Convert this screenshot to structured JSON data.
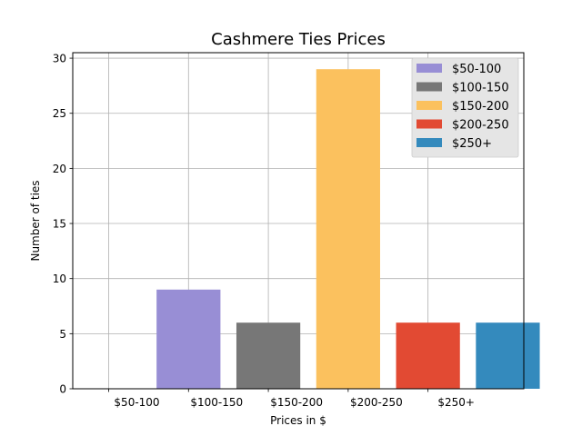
{
  "chart_data": {
    "type": "bar",
    "title": "Cashmere Ties Prices",
    "xlabel": "Prices in $",
    "ylabel": "Number of ties",
    "categories": [
      "$50-100",
      "$100-150",
      "$150-200",
      "$200-250",
      "$250+"
    ],
    "values": [
      9,
      6,
      29,
      6,
      6
    ],
    "colors": [
      "#988ED5",
      "#777777",
      "#FBC15E",
      "#E24A33",
      "#348ABD"
    ],
    "ylim": [
      0,
      30.5
    ],
    "yticks": [
      0,
      5,
      10,
      15,
      20,
      25,
      30
    ],
    "grid": true,
    "legend": {
      "position": "top-right",
      "entries": [
        "$50-100",
        "$100-150",
        "$150-200",
        "$200-250",
        "$250+"
      ]
    }
  }
}
